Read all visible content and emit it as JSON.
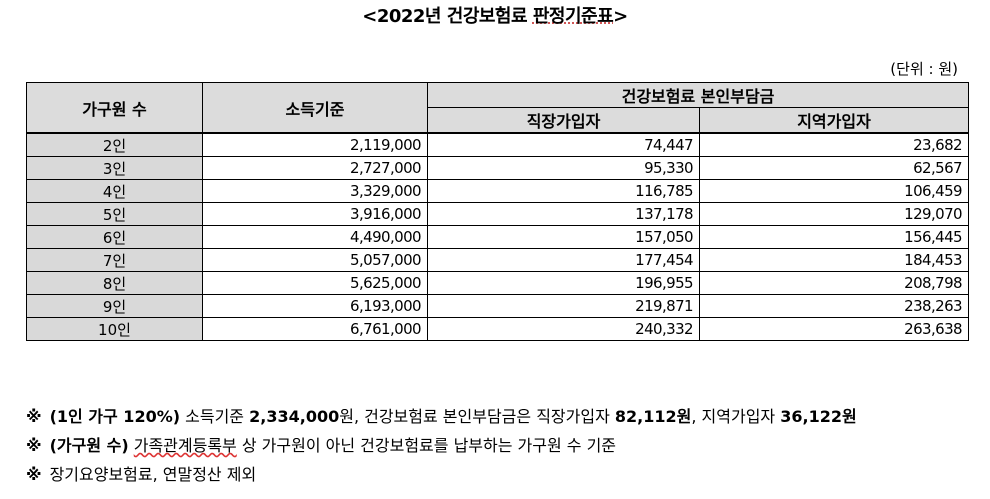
{
  "title": {
    "prefix": "<2022년 건강보험료 ",
    "underlined": "판정기준표",
    "suffix": ">"
  },
  "unit": "(단위 : 원)",
  "table": {
    "headers": {
      "household": "가구원 수",
      "income": "소득기준",
      "premium_group": "건강보험료 본인부담금",
      "employee": "직장가입자",
      "regional": "지역가입자"
    },
    "rows": [
      {
        "count": "2인",
        "income": "2,119,000",
        "employee": "74,447",
        "regional": "23,682"
      },
      {
        "count": "3인",
        "income": "2,727,000",
        "employee": "95,330",
        "regional": "62,567"
      },
      {
        "count": "4인",
        "income": "3,329,000",
        "employee": "116,785",
        "regional": "106,459"
      },
      {
        "count": "5인",
        "income": "3,916,000",
        "employee": "137,178",
        "regional": "129,070"
      },
      {
        "count": "6인",
        "income": "4,490,000",
        "employee": "157,050",
        "regional": "156,445"
      },
      {
        "count": "7인",
        "income": "5,057,000",
        "employee": "177,454",
        "regional": "184,453"
      },
      {
        "count": "8인",
        "income": "5,625,000",
        "employee": "196,955",
        "regional": "208,798"
      },
      {
        "count": "9인",
        "income": "6,193,000",
        "employee": "219,871",
        "regional": "238,263"
      },
      {
        "count": "10인",
        "income": "6,761,000",
        "employee": "240,332",
        "regional": "263,638"
      }
    ]
  },
  "notes": {
    "mark": "※",
    "n1": {
      "head": "(1인 가구 120%)",
      "t1": " 소득기준 ",
      "v1": "2,334,000",
      "t2": "원, 건강보험료 본인부담금은 직장가입자 ",
      "v2": "82,112원",
      "t3": ", 지역가입자 ",
      "v3": "36,122원"
    },
    "n2": {
      "head": "(가구원 수)",
      "wavy": "가족관계등록부",
      "rest": " 상 가구원이 아닌 건강보험료를 납부하는 가구원 수 기준"
    },
    "n3": {
      "text": "장기요양보험료, 연말정산 제외"
    }
  }
}
